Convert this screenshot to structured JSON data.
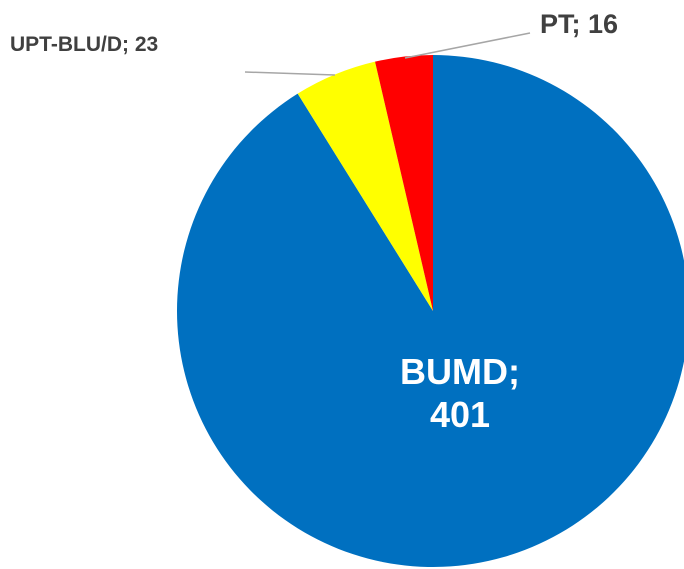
{
  "chart_data": {
    "type": "pie",
    "categories": [
      "BUMD",
      "UPT-BLU/D",
      "PT"
    ],
    "values": [
      401,
      23,
      16
    ],
    "value_labels": [
      "BUMD; 401",
      "UPT-BLU/D; 23",
      "PT; 16"
    ],
    "colors": [
      "#0070C0",
      "#FFFF00",
      "#FF0000"
    ]
  }
}
